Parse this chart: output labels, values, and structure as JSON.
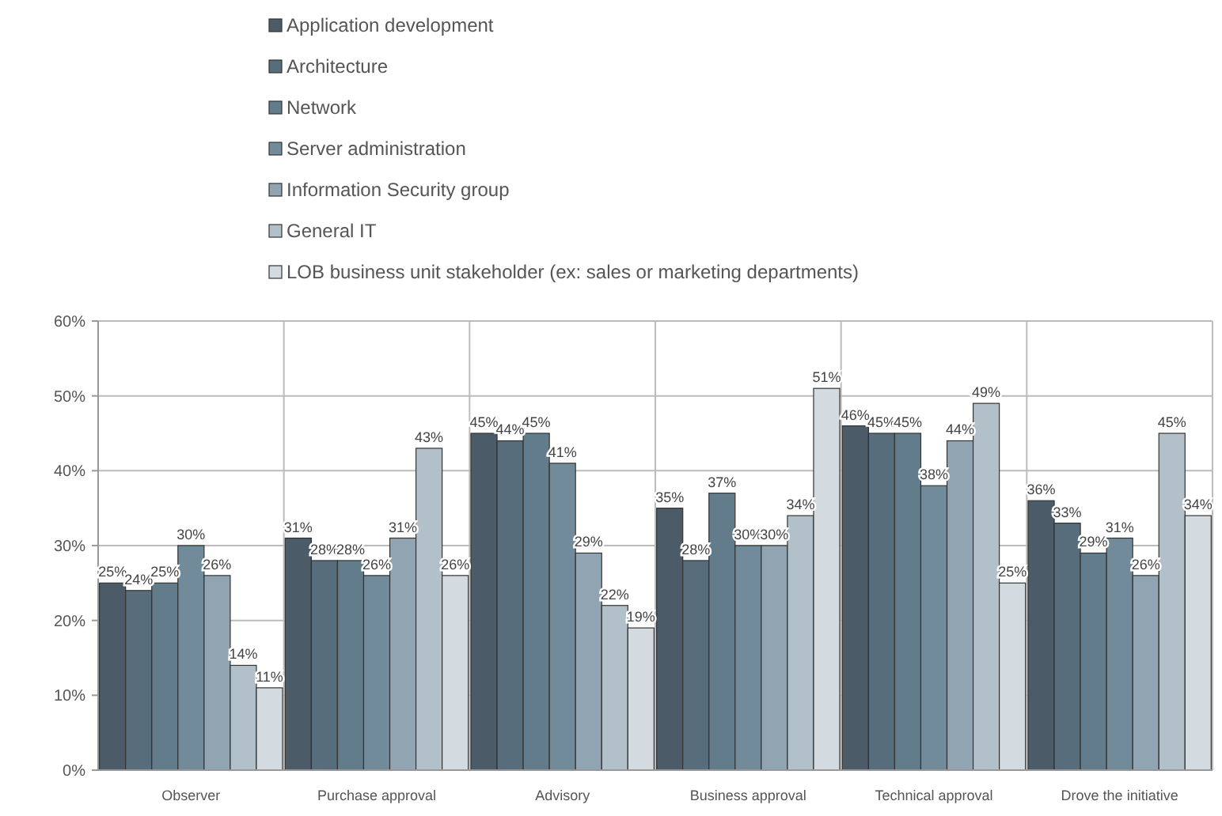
{
  "chart_data": {
    "type": "bar",
    "categories": [
      "Observer",
      "Purchase approval",
      "Advisory",
      "Business approval",
      "Technical approval",
      "Drove the initiative"
    ],
    "series": [
      {
        "name": "Application development",
        "color": "#4b5b67",
        "values": [
          25,
          31,
          45,
          35,
          46,
          36
        ],
        "value_labels": [
          "25%",
          "31%",
          "45%",
          "35%",
          "46%",
          "36%"
        ]
      },
      {
        "name": "Architecture",
        "color": "#586d7b",
        "values": [
          24,
          28,
          44,
          28,
          45,
          33
        ],
        "value_labels": [
          "24%",
          "28%",
          "44%",
          "28%",
          "45%",
          "33%"
        ]
      },
      {
        "name": "Network",
        "color": "#637c8c",
        "values": [
          25,
          28,
          45,
          37,
          45,
          29
        ],
        "value_labels": [
          "25%",
          "28%",
          "45%",
          "37%",
          "45%",
          "29%"
        ]
      },
      {
        "name": "Server administration",
        "color": "#718b9b",
        "values": [
          30,
          26,
          41,
          30,
          38,
          31
        ],
        "value_labels": [
          "30%",
          "26%",
          "41%",
          "30%",
          "38%",
          "31%"
        ]
      },
      {
        "name": "Information Security group",
        "color": "#90a4b1",
        "values": [
          26,
          31,
          29,
          30,
          44,
          26
        ],
        "value_labels": [
          "26%",
          "31%",
          "29%",
          "30%",
          "44%",
          "26%"
        ]
      },
      {
        "name": "General IT",
        "color": "#b2c0c9",
        "values": [
          14,
          43,
          22,
          34,
          49,
          45
        ],
        "value_labels": [
          "14%",
          "43%",
          "22%",
          "34%",
          "49%",
          "45%"
        ]
      },
      {
        "name": "LOB business unit stakeholder (ex: sales or marketing departments)",
        "color": "#d3dbe0",
        "values": [
          11,
          26,
          19,
          51,
          25,
          34
        ],
        "value_labels": [
          "11%",
          "26%",
          "19%",
          "51%",
          "25%",
          "34%"
        ]
      }
    ],
    "ylim": [
      0,
      60
    ],
    "yticks": [
      {
        "value": 0,
        "label": "0%"
      },
      {
        "value": 10,
        "label": "10%"
      },
      {
        "value": 20,
        "label": "20%"
      },
      {
        "value": 30,
        "label": "30%"
      },
      {
        "value": 40,
        "label": "40%"
      },
      {
        "value": 50,
        "label": "50%"
      },
      {
        "value": 60,
        "label": "60%"
      }
    ],
    "grid": true,
    "legend": "top"
  }
}
